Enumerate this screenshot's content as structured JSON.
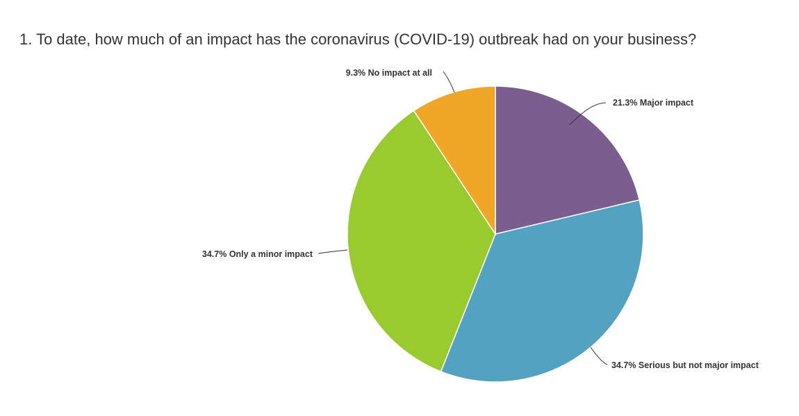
{
  "chart_data": {
    "type": "pie",
    "title": "1. To date, how much of an impact has the coronavirus (COVID-19) outbreak had on your business?",
    "slices": [
      {
        "label": "Major impact",
        "value": 21.3,
        "display": "21.3% Major impact",
        "color": "#7b5d8e"
      },
      {
        "label": "Serious but not major impact",
        "value": 34.7,
        "display": "34.7% Serious but not major impact",
        "color": "#53a2c1"
      },
      {
        "label": "Only a minor impact",
        "value": 34.7,
        "display": "34.7% Only a minor impact",
        "color": "#99cb2e"
      },
      {
        "label": "No impact at all",
        "value": 9.3,
        "display": "9.3% No impact at all",
        "color": "#f0a727"
      }
    ]
  }
}
